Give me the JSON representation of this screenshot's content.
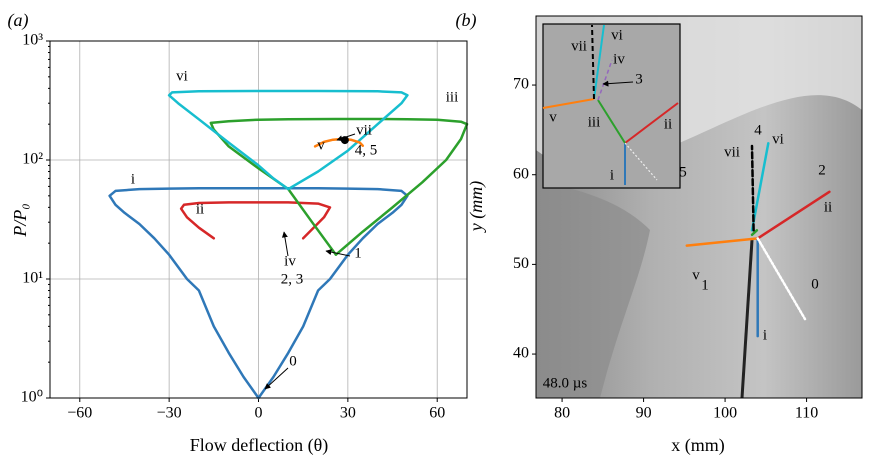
{
  "chart_data": [
    {
      "type": "line",
      "panel_label": "(a)",
      "xlabel": "Flow deflection (θ)",
      "ylabel": "P/P₀",
      "xlim": [
        -70,
        70
      ],
      "ylim": [
        1,
        1000
      ],
      "log_y": true,
      "grid": true,
      "xticks": [
        {
          "value": -60,
          "label": "−60"
        },
        {
          "value": -30,
          "label": "−30"
        },
        0,
        30,
        60
      ],
      "yticks": [
        {
          "value": 1,
          "label": "10⁰"
        },
        {
          "value": 10,
          "label": "10¹"
        },
        {
          "value": 100,
          "label": "10²"
        },
        {
          "value": 1000,
          "label": "10³"
        }
      ],
      "series": [
        {
          "color": "#2f78b8",
          "x": [
            -50,
            -48,
            -45,
            -40,
            -35,
            -30,
            -24,
            -20,
            -15,
            -10,
            -5,
            0,
            5,
            10,
            15,
            20,
            24,
            30,
            35,
            40,
            45,
            48,
            50,
            48,
            40,
            30,
            20,
            10,
            0,
            -10,
            -20,
            -30,
            -40,
            -48,
            -50
          ],
          "values": [
            50,
            42,
            36,
            29,
            22,
            16,
            10,
            8,
            4,
            2.4,
            1.5,
            1,
            1.5,
            2.4,
            4,
            8,
            10,
            16,
            22,
            29,
            36,
            42,
            50,
            55,
            57,
            57.5,
            58,
            58,
            58,
            58,
            58,
            57.5,
            57,
            55,
            50
          ]
        },
        {
          "color": "#d62728",
          "x": [
            -15,
            -20,
            -24,
            -26,
            -25,
            -20,
            -10,
            0,
            10,
            20,
            24,
            22,
            15
          ],
          "values": [
            22,
            27,
            33,
            39,
            42,
            43.5,
            44,
            44,
            44,
            43,
            40,
            33,
            22
          ]
        },
        {
          "color": "#2ca02c",
          "x": [
            26,
            35,
            45,
            55,
            63,
            68,
            70,
            68,
            60,
            50,
            40,
            26,
            10,
            0,
            -10,
            -16,
            -15,
            -10,
            0,
            10,
            18,
            26
          ],
          "values": [
            16,
            25,
            40,
            65,
            100,
            150,
            200,
            210,
            218,
            220,
            221,
            221,
            220,
            218,
            212,
            205,
            180,
            130,
            85,
            57,
            30,
            16
          ]
        },
        {
          "color": "#17becf",
          "x": [
            10,
            5,
            0,
            -10,
            -20,
            -27,
            -30,
            -29,
            -20,
            0,
            20,
            40,
            48,
            50,
            48,
            40,
            30,
            20,
            10
          ],
          "values": [
            57,
            70,
            90,
            140,
            220,
            300,
            350,
            370,
            378,
            380,
            380,
            378,
            370,
            350,
            300,
            200,
            120,
            80,
            57
          ]
        },
        {
          "color": "#ff7f0e",
          "x": [
            19,
            22,
            25,
            28,
            31,
            34,
            35
          ],
          "values": [
            130,
            142,
            148,
            150,
            148,
            140,
            132
          ]
        },
        {
          "color": "#000000",
          "marker": "dot",
          "x": [
            29
          ],
          "values": [
            147
          ]
        }
      ],
      "annotations": [
        "vi",
        "iii",
        "v",
        "vii",
        "4, 5",
        "i",
        "ii",
        "iv",
        "2, 3",
        "1",
        "0"
      ]
    },
    {
      "type": "line",
      "panel_label": "(b)",
      "xlabel": "x (mm)",
      "ylabel": "y (mm)",
      "xlim": [
        76.8,
        116.8
      ],
      "ylim": [
        35.1,
        77.7
      ],
      "xticks": [
        80,
        90,
        100,
        110
      ],
      "yticks": [
        40,
        50,
        60,
        70
      ],
      "series": [
        {
          "color": "#ff7f0e",
          "x": [
            95.3,
            104.0
          ],
          "values": [
            52.1,
            52.9
          ]
        },
        {
          "color": "#2f78b8",
          "x": [
            104.0,
            104.0
          ],
          "values": [
            52.9,
            42.0
          ]
        },
        {
          "color": "#d62728",
          "x": [
            104.0,
            112.8
          ],
          "values": [
            52.9,
            58.1
          ]
        },
        {
          "color": "#ffffff",
          "dash": "dotted",
          "x": [
            104.0,
            109.8
          ],
          "values": [
            52.9,
            43.9
          ]
        },
        {
          "color": "#2ca02c",
          "x": [
            103.3,
            103.9
          ],
          "values": [
            53.3,
            53.8
          ]
        },
        {
          "color": "#17becf",
          "x": [
            103.3,
            105.3
          ],
          "values": [
            53.8,
            63.5
          ]
        },
        {
          "color": "#000000",
          "dash": "dashed",
          "x": [
            103.5,
            103.3
          ],
          "values": [
            53.8,
            63.2
          ]
        }
      ],
      "annotations": [
        "4",
        "vi",
        "vii",
        "2",
        "5",
        "ii",
        "v",
        "1",
        "0",
        "i",
        "48.0 µs"
      ],
      "inset_annotations": [
        "vi",
        "vii",
        "iv",
        "3",
        "v",
        "iii",
        "ii",
        "i"
      ]
    }
  ]
}
